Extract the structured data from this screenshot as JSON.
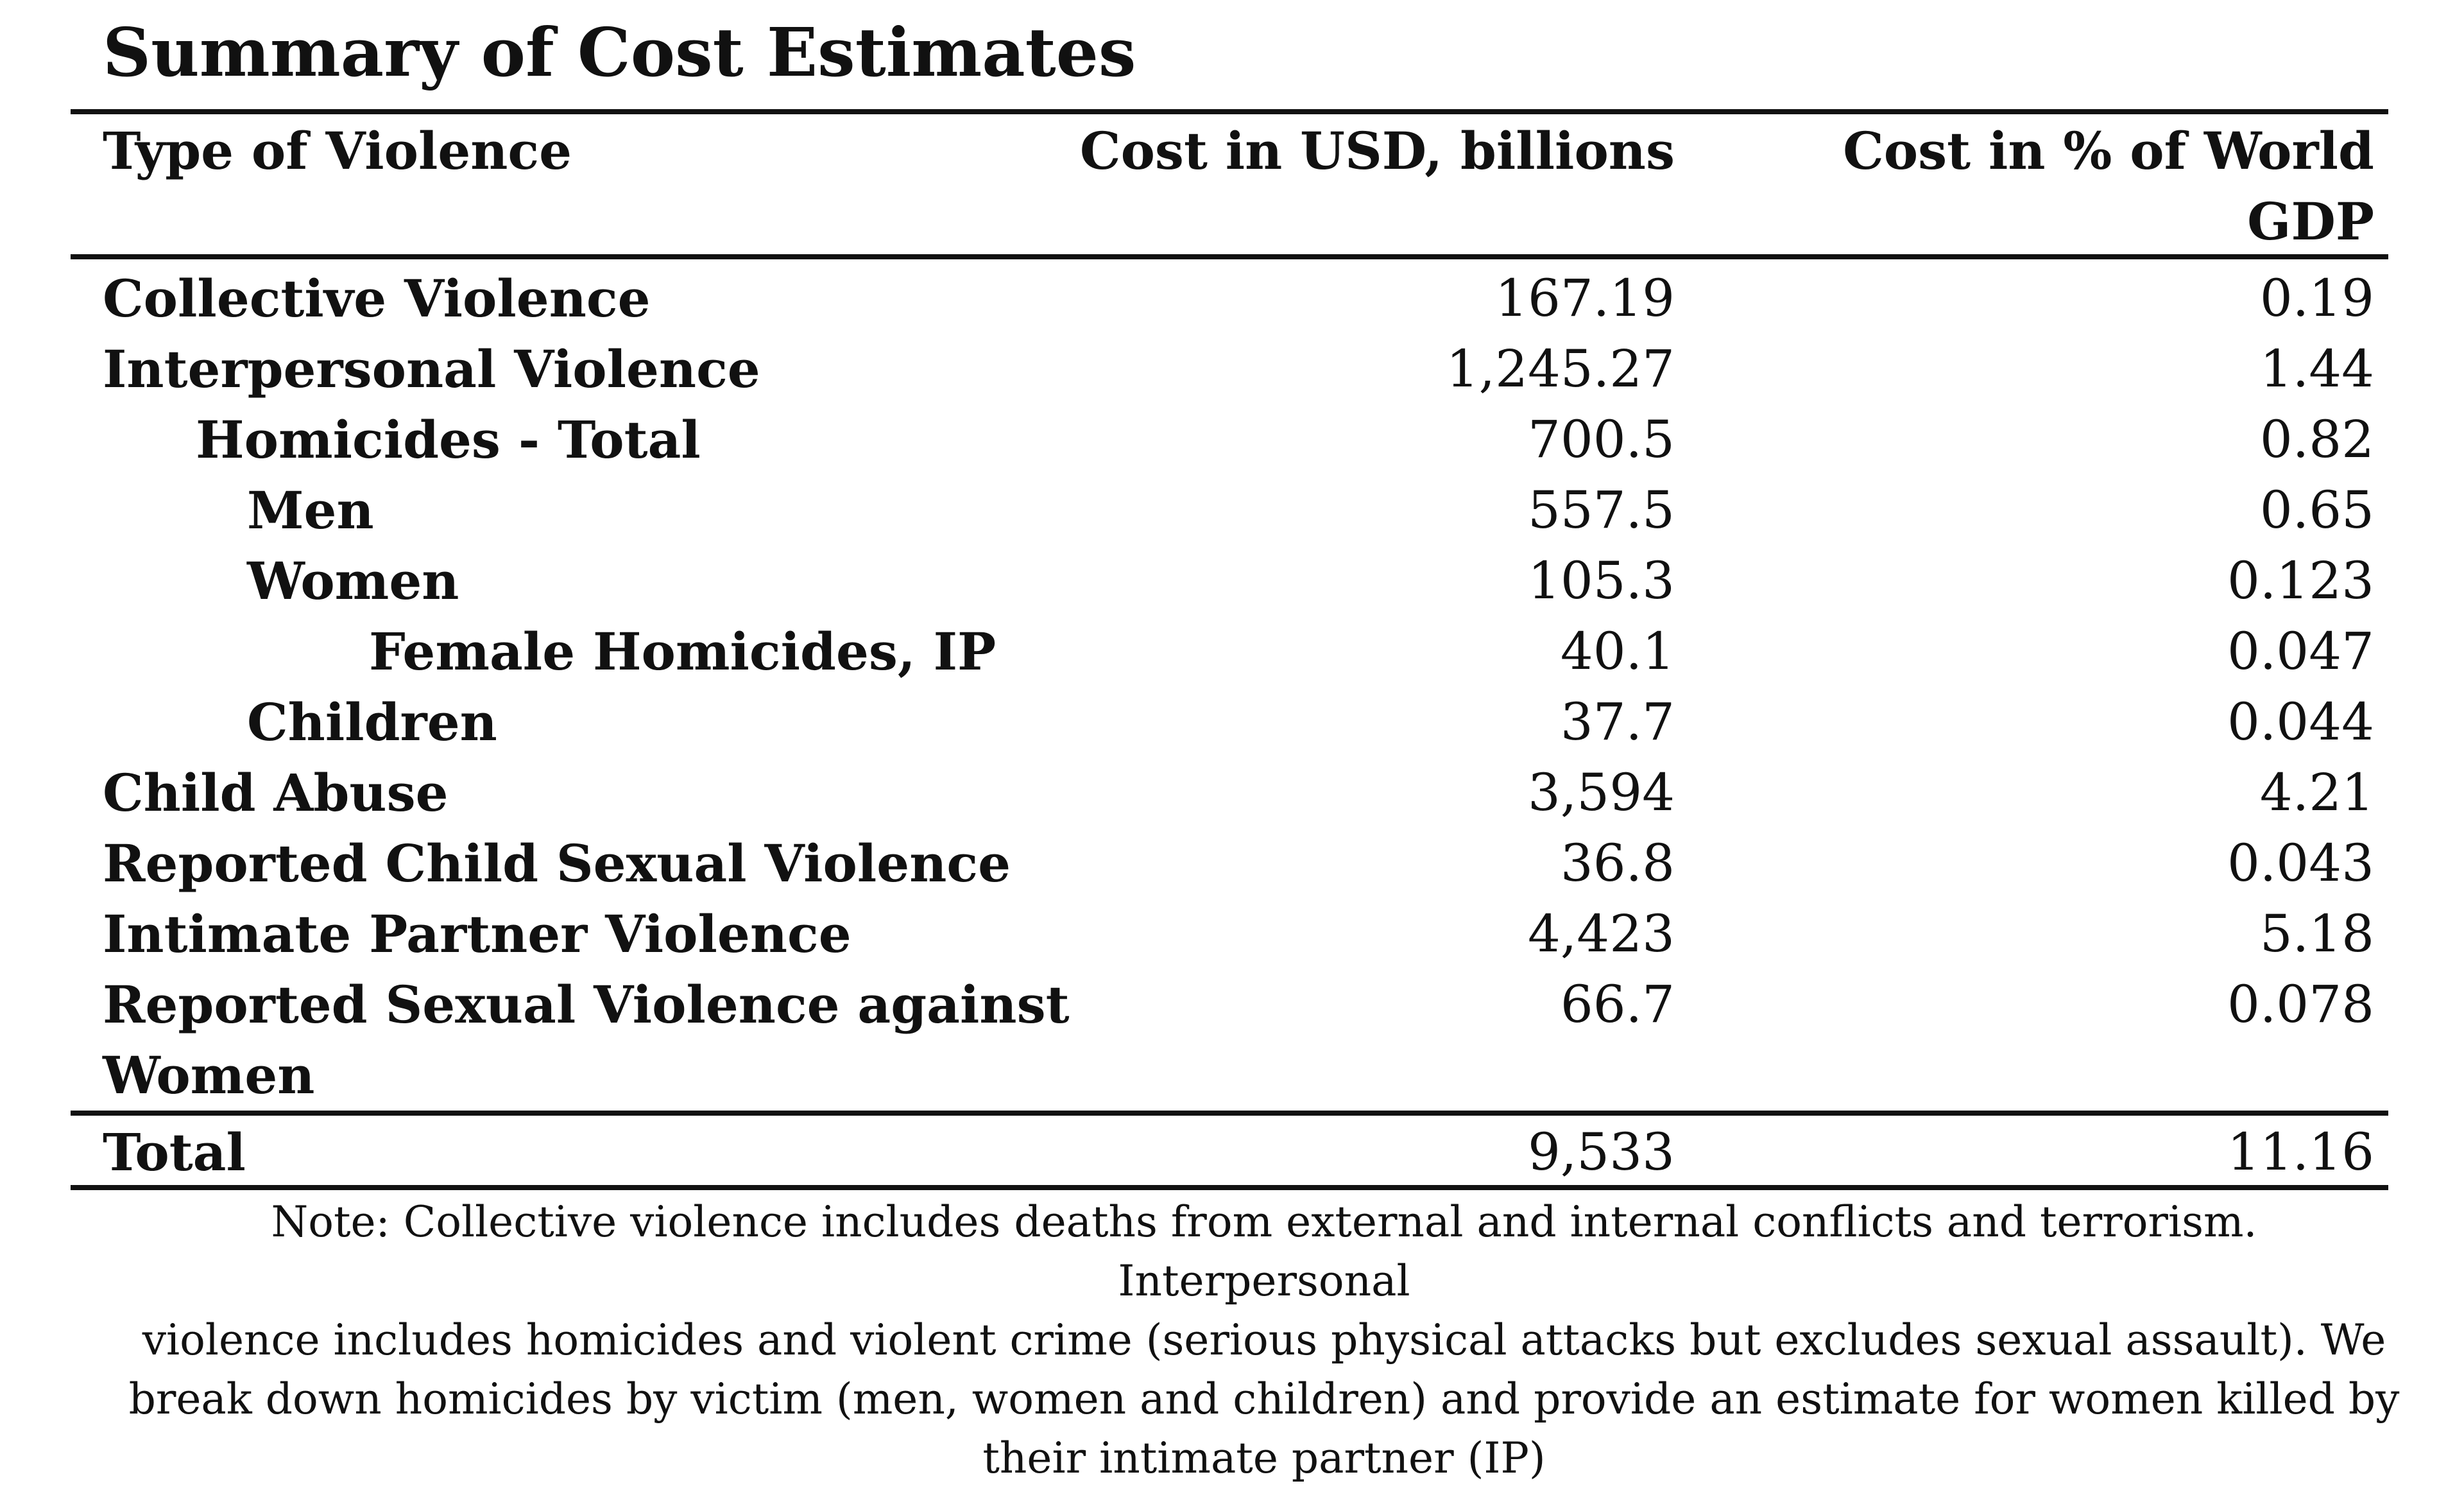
{
  "title": "Summary of Cost Estimates",
  "table": {
    "headers": {
      "type": "Type of Violence",
      "cost_usd": "Cost in USD, billions",
      "cost_pct_line1": "Cost in % of World",
      "cost_pct_line2": "GDP"
    },
    "rows": [
      {
        "label": "Collective Violence",
        "cost": "167.19",
        "pct": "0.19"
      },
      {
        "label": "Interpersonal Violence",
        "cost": "1,245.27",
        "pct": "1.44"
      },
      {
        "label": "Homicides - Total",
        "cost": "700.5",
        "pct": "0.82"
      },
      {
        "label": "Men",
        "cost": "557.5",
        "pct": "0.65"
      },
      {
        "label": "Women",
        "cost": "105.3",
        "pct": "0.123"
      },
      {
        "label": "Female Homicides, IP",
        "cost": "40.1",
        "pct": "0.047"
      },
      {
        "label": "Children",
        "cost": "37.7",
        "pct": "0.044"
      },
      {
        "label": "Child Abuse",
        "cost": "3,594",
        "pct": "4.21"
      },
      {
        "label": "Reported Child Sexual Violence",
        "cost": "36.8",
        "pct": "0.043"
      },
      {
        "label": "Intimate Partner Violence",
        "cost": "4,423",
        "pct": "5.18"
      },
      {
        "label": "Reported Sexual Violence against",
        "label_line2": "Women",
        "cost": "66.7",
        "pct": "0.078"
      }
    ],
    "total": {
      "label": "Total",
      "cost": "9,533",
      "pct": "11.16"
    }
  },
  "note": {
    "line1": "Note: Collective violence includes deaths from external and internal conflicts and terrorism. Interpersonal",
    "line2": "violence includes homicides and violent crime (serious physical attacks but excludes sexual assault). We",
    "line3": "break down homicides by victim (men, women and children) and provide an estimate for women killed by",
    "line4": "their intimate partner (IP)"
  }
}
